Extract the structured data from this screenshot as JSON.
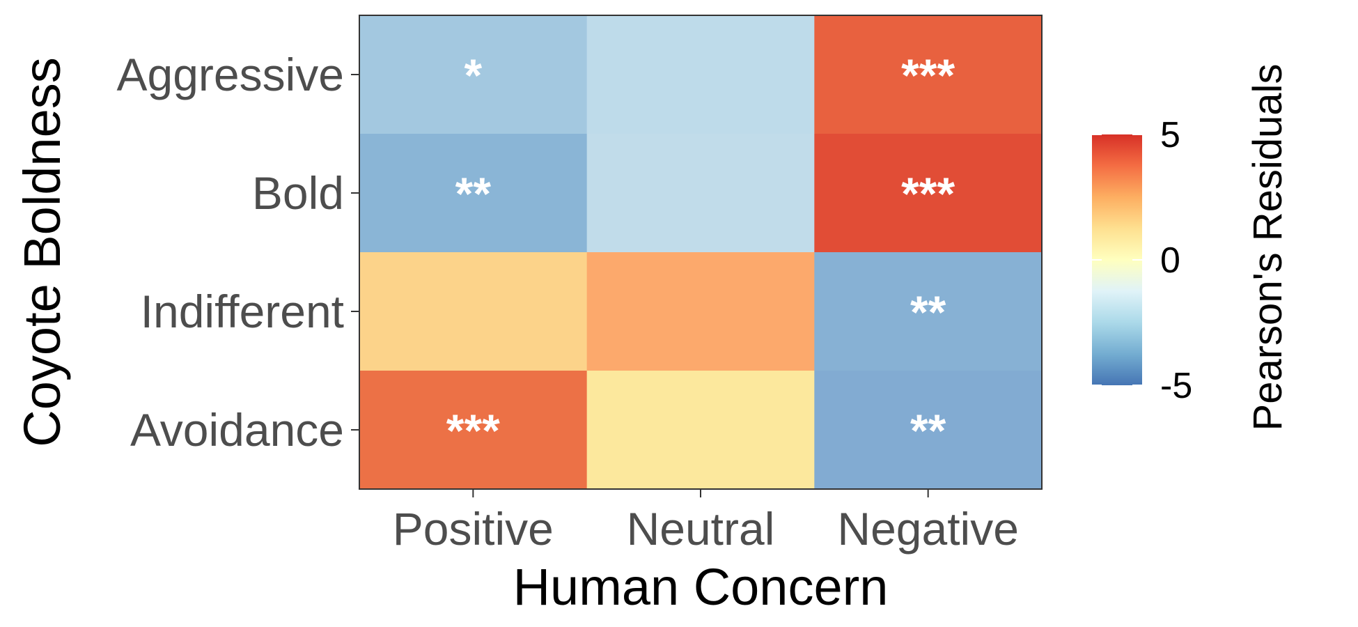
{
  "chart_data": {
    "type": "heatmap",
    "xlabel": "Human Concern",
    "ylabel": "Coyote Boldness",
    "x_categories": [
      "Positive",
      "Neutral",
      "Negative"
    ],
    "y_categories": [
      "Aggressive",
      "Bold",
      "Indifferent",
      "Avoidance"
    ],
    "cells": [
      {
        "x": "Positive",
        "y": "Aggressive",
        "value": -2.6,
        "label": "*",
        "color": "#a3c8e0"
      },
      {
        "x": "Neutral",
        "y": "Aggressive",
        "value": -1.7,
        "label": "",
        "color": "#bedbea"
      },
      {
        "x": "Negative",
        "y": "Aggressive",
        "value": 4.0,
        "label": "***",
        "color": "#e8613f"
      },
      {
        "x": "Positive",
        "y": "Bold",
        "value": -3.4,
        "label": "**",
        "color": "#8ab5d6"
      },
      {
        "x": "Neutral",
        "y": "Bold",
        "value": -1.6,
        "label": "",
        "color": "#c1dcea"
      },
      {
        "x": "Negative",
        "y": "Bold",
        "value": 4.6,
        "label": "***",
        "color": "#e14d36"
      },
      {
        "x": "Positive",
        "y": "Indifferent",
        "value": 1.8,
        "label": "",
        "color": "#fcd38a"
      },
      {
        "x": "Neutral",
        "y": "Indifferent",
        "value": 2.8,
        "label": "",
        "color": "#fca96c"
      },
      {
        "x": "Negative",
        "y": "Indifferent",
        "value": -3.5,
        "label": "**",
        "color": "#87b1d4"
      },
      {
        "x": "Positive",
        "y": "Avoidance",
        "value": 3.6,
        "label": "***",
        "color": "#ec7146"
      },
      {
        "x": "Neutral",
        "y": "Avoidance",
        "value": 1.1,
        "label": "",
        "color": "#fce89d"
      },
      {
        "x": "Negative",
        "y": "Avoidance",
        "value": -3.6,
        "label": "**",
        "color": "#82abd2"
      }
    ],
    "legend": {
      "title": "Pearson's Residuals",
      "min": -5,
      "max": 5,
      "ticks": [
        5,
        0,
        -5
      ],
      "tick_labels": [
        "5",
        "0",
        "-5"
      ],
      "colors": [
        "#d73027",
        "#f46d43",
        "#fdae61",
        "#fee090",
        "#ffffbf",
        "#e0f3f8",
        "#abd9e9",
        "#74add1",
        "#4575b4"
      ]
    }
  }
}
